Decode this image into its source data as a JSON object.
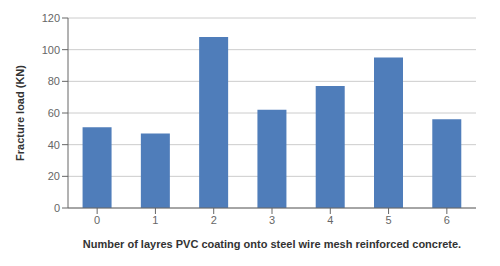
{
  "chart_data": {
    "type": "bar",
    "categories": [
      "0",
      "1",
      "2",
      "3",
      "4",
      "5",
      "6"
    ],
    "values": [
      51,
      47,
      108,
      62,
      77,
      95,
      56
    ],
    "color": "#4f7dba",
    "xlabel": "Number of layres PVC coating onto steel wire mesh reinforced concrete.",
    "ylabel": "Fracture load (KN)",
    "ylim": [
      0,
      120
    ],
    "yticks": [
      0,
      20,
      40,
      60,
      80,
      100,
      120
    ],
    "grid": true
  }
}
